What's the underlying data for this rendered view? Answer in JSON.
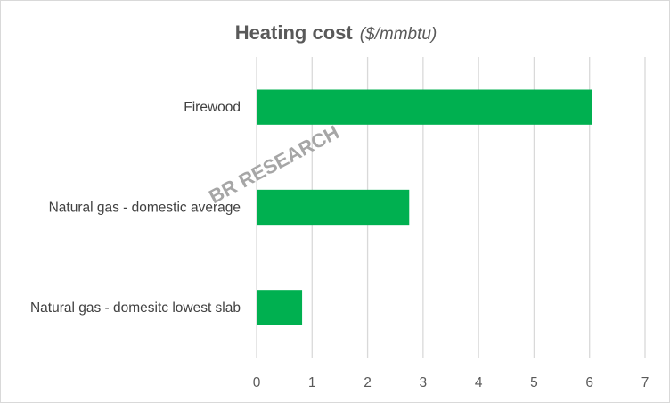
{
  "chart_data": {
    "type": "bar",
    "orientation": "horizontal",
    "title": "Heating cost",
    "subtitle": "($/mmbtu)",
    "categories": [
      "Firewood",
      "Natural gas - domestic average",
      "Natural gas - domesitc lowest slab"
    ],
    "values": [
      6.05,
      2.75,
      0.82
    ],
    "xlim": [
      0,
      7
    ],
    "xticks": [
      "0",
      "1",
      "2",
      "3",
      "4",
      "5",
      "6",
      "7"
    ],
    "xlabel": "",
    "ylabel": "",
    "grid": "vertical",
    "legend": "none",
    "bar_color": "#00b050",
    "watermark": "BR RESEARCH"
  }
}
